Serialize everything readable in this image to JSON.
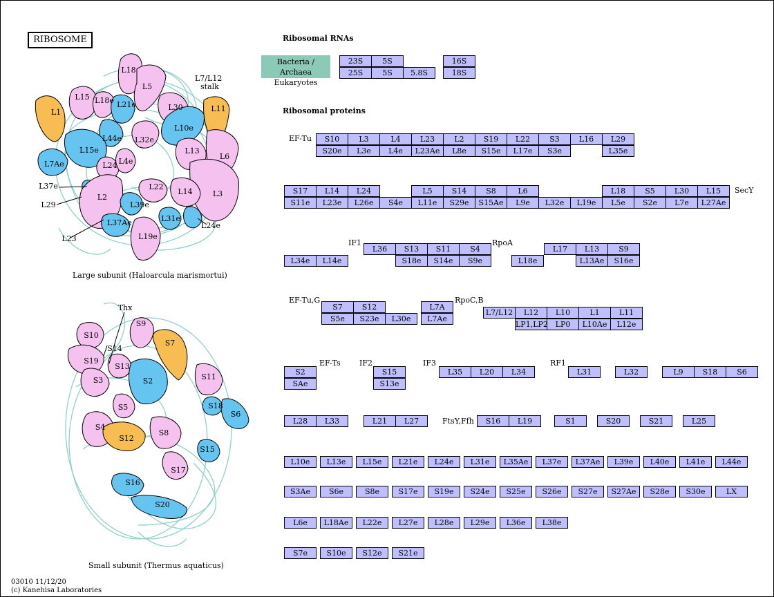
{
  "title": "RIBOSOME",
  "rrna_heading": "Ribosomal RNAs",
  "protein_heading": "Ribosomal proteins",
  "legend": {
    "line1": "Bacteria / Archaea",
    "line2": "Eukaryotes"
  },
  "large_subunit_caption": "Large subunit (Haloarcula marismortui)",
  "small_subunit_caption": "Small subunit (Thermus aquaticus)",
  "stalk_label": [
    "L7/L12",
    "stalk"
  ],
  "footer": {
    "line1": "03010 11/12/20",
    "line2": "(c) Kanehisa Laboratories"
  },
  "colors": {
    "pink": "#f5c2f0",
    "blue": "#66c4f0",
    "orange": "#f7bc52",
    "rna": "#8fd0c9",
    "gene": "#bfbfff",
    "legend": "#8cc9b6"
  },
  "rrna": {
    "row1": [
      "23S",
      "5S",
      "16S"
    ],
    "row2": [
      "25S",
      "5S",
      "5.8S",
      "18S"
    ]
  },
  "factors": {
    "ef_tu": "EF-Tu",
    "secy": "SecY",
    "if1": "IF1",
    "rpoa": "RpoA",
    "ef_tu_g": "EF-Tu,G",
    "rpocb": "RpoC,B",
    "ef_ts": "EF-Ts",
    "if2": "IF2",
    "if3": "IF3",
    "rf1": "RF1",
    "ftsy": "FtsY,Ffh"
  },
  "groups": {
    "g1_top": [
      "S10",
      "L3",
      "L4",
      "L23",
      "L2",
      "S19",
      "L22",
      "S3",
      "L16",
      "L29"
    ],
    "g1_bot": [
      "S20e",
      "L3e",
      "L4e",
      "L23Ae",
      "L8e",
      "S15e",
      "L17e",
      "S3e",
      "L35e"
    ],
    "g2_top": [
      "S17",
      "L14",
      "L24",
      "L5",
      "S14",
      "S8",
      "L6",
      "L18",
      "S5",
      "L30",
      "L15"
    ],
    "g2_bot": [
      "S11e",
      "L23e",
      "L26e",
      "S4e",
      "L11e",
      "S29e",
      "S15Ae",
      "L9e",
      "L32e",
      "L19e",
      "L5e",
      "S2e",
      "L7e",
      "L27Ae"
    ],
    "g3_top": [
      "L36",
      "S13",
      "S11",
      "S4",
      "L17",
      "L13",
      "S9"
    ],
    "g3_bot": [
      "L34e",
      "L14e",
      "S18e",
      "S14e",
      "S9e",
      "L18e",
      "L13Ae",
      "S16e"
    ],
    "g4_top": [
      "S7",
      "S12",
      "L7A",
      "L7/L12",
      "L12",
      "L10",
      "L1",
      "L11"
    ],
    "g4_bot": [
      "S5e",
      "S23e",
      "L30e",
      "L7Ae",
      "LP1,LP2",
      "LP0",
      "L10Ae",
      "L12e"
    ],
    "g5": [
      "S2",
      "SAe",
      "S15",
      "S13e",
      "L35",
      "L20",
      "L34",
      "L31",
      "L32",
      "L9",
      "S18",
      "S6"
    ],
    "g6": [
      "L28",
      "L33",
      "L21",
      "L27",
      "S16",
      "L19",
      "S1",
      "S20",
      "S21",
      "L25"
    ],
    "euk1": [
      "L10e",
      "L13e",
      "L15e",
      "L21e",
      "L24e",
      "L31e",
      "L35Ae",
      "L37e",
      "L37Ae",
      "L39e",
      "L40e",
      "L41e",
      "L44e"
    ],
    "euk2": [
      "S3Ae",
      "S6e",
      "S8e",
      "S17e",
      "S19e",
      "S24e",
      "S25e",
      "S26e",
      "S27e",
      "S27Ae",
      "S28e",
      "S30e",
      "LX"
    ],
    "euk3": [
      "L6e",
      "L18Ae",
      "L22e",
      "L27e",
      "L28e",
      "L29e",
      "L36e",
      "L38e"
    ],
    "euk4": [
      "S7e",
      "S10e",
      "S12e",
      "S21e"
    ]
  },
  "large_subunit_proteins": [
    "L18",
    "L5",
    "L15",
    "L18e",
    "L21e",
    "L1",
    "L30",
    "L11",
    "L10e",
    "L44e",
    "L32e",
    "L15e",
    "L13",
    "L6",
    "L7Ae",
    "L24",
    "L4e",
    "L3",
    "L37e",
    "L29",
    "L2",
    "L22",
    "L14",
    "L39e",
    "L31e",
    "L24e",
    "L37Ae",
    "L23",
    "L19e"
  ],
  "small_subunit_proteins": [
    "Thx",
    "S9",
    "S10",
    "S14",
    "S7",
    "S19",
    "S13",
    "S3",
    "S2",
    "S11",
    "S18",
    "S6",
    "S5",
    "S4",
    "S12",
    "S8",
    "S15",
    "S17",
    "S16",
    "S20"
  ]
}
